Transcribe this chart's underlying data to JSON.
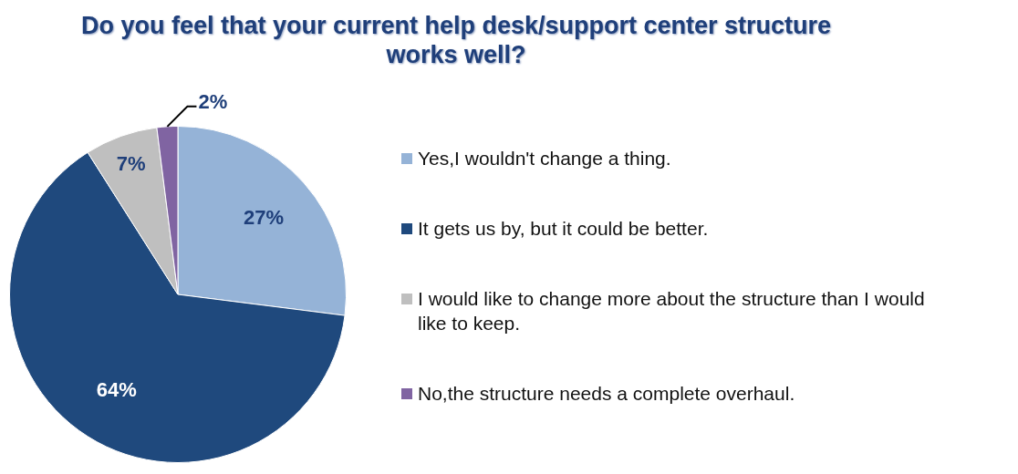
{
  "chart_data": {
    "type": "pie",
    "title": "Do you feel that your current help desk/support center structure works well?",
    "categories": [
      "Yes,I wouldn't change a thing.",
      "It gets us by, but it could be better.",
      "I would like to change more about the structure than I would like to keep.",
      "No,the structure needs a complete overhaul."
    ],
    "values": [
      27,
      64,
      7,
      2
    ],
    "colors": [
      "#95b3d7",
      "#1f497d",
      "#bfbfbf",
      "#8064a2"
    ],
    "value_labels": [
      "27%",
      "64%",
      "7%",
      "2%"
    ],
    "legend": "right"
  }
}
